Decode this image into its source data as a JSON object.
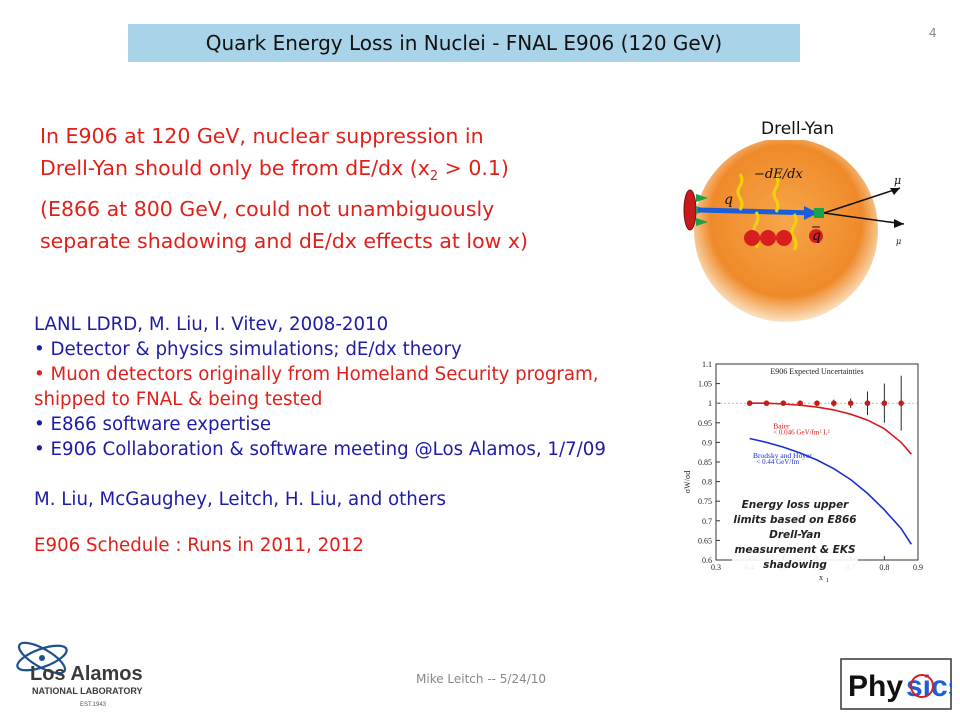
{
  "slide": {
    "title": "Quark Energy Loss in Nuclei - FNAL E906 (120 GeV)",
    "number": "4",
    "footer": "Mike Leitch -- 5/24/10"
  },
  "intro": {
    "line1": "In E906 at 120 GeV, nuclear suppression in",
    "line2_pre": "Drell-Yan should only be from dE/dx (x",
    "line2_sub": "2",
    "line2_post": " > 0.1)",
    "line3": "(E866 at 800 GeV, could not unambiguously",
    "line4": "separate shadowing and dE/dx effects at low x)"
  },
  "body": {
    "heading": "LANL LDRD, M. Liu, I. Vitev, 2008-2010",
    "bullets": [
      "Detector & physics simulations; dE/dx theory",
      "Muon detectors originally from Homeland Security program, shipped to FNAL & being tested",
      "E866 software expertise",
      "E906 Collaboration & software meeting @Los Alamos, 1/7/09"
    ],
    "people": "M. Liu, McGaughey, Leitch, H. Liu, and others",
    "schedule": "E906 Schedule : Runs in 2011, 2012"
  },
  "diagram": {
    "label": "Drell-Yan",
    "quark_label": "q",
    "antiquark_label": "q",
    "energy_loss_label": "−dE/dx",
    "mu_plus": "μ",
    "mu_minus": "μ",
    "colors": {
      "nucleus": "#ef8a2a",
      "beam": "#1b5fd8",
      "gluon": "#f2d10c",
      "nucleon": "#d81e1e"
    }
  },
  "plot": {
    "note": "Energy loss upper limits based on E866 Drell-Yan measurement & EKS shadowing"
  },
  "chart_data": {
    "type": "line",
    "title": "E906 Expected Uncertainties",
    "xlabel": "x",
    "xlabel_sub": "1",
    "ylabel": "σW/σd",
    "xlim": [
      0.3,
      0.9
    ],
    "ylim": [
      0.6,
      1.1
    ],
    "xticks": [
      "0.3",
      "0.4",
      "0.5",
      "0.6",
      "0.7",
      "0.8",
      "0.9"
    ],
    "yticks": [
      "0.6",
      "0.65",
      "0.7",
      "0.75",
      "0.8",
      "0.85",
      "0.9",
      "0.95",
      "1",
      "1.05",
      "1.1"
    ],
    "series": [
      {
        "name": "Baier",
        "note": "< 0.046 GeV/fm² L²",
        "color": "#d71a1a",
        "x": [
          0.4,
          0.45,
          0.5,
          0.55,
          0.6,
          0.65,
          0.7,
          0.75,
          0.8,
          0.85,
          0.88
        ],
        "y": [
          1.0,
          1.0,
          0.998,
          0.995,
          0.99,
          0.983,
          0.972,
          0.957,
          0.935,
          0.9,
          0.87
        ]
      },
      {
        "name": "Brodsky and Hoyer",
        "note": "< 0.44 GeV/fm",
        "color": "#1a2ed6",
        "x": [
          0.4,
          0.45,
          0.5,
          0.55,
          0.6,
          0.65,
          0.7,
          0.75,
          0.8,
          0.85,
          0.88
        ],
        "y": [
          0.91,
          0.9,
          0.888,
          0.873,
          0.855,
          0.833,
          0.805,
          0.77,
          0.728,
          0.68,
          0.64
        ]
      }
    ],
    "points": {
      "color": "#c81a1a",
      "x": [
        0.4,
        0.45,
        0.5,
        0.55,
        0.6,
        0.65,
        0.7,
        0.75,
        0.8,
        0.85
      ],
      "y": [
        1.0,
        1.0,
        1.0,
        1.0,
        1.0,
        1.0,
        1.0,
        1.0,
        1.0,
        1.0
      ],
      "err": [
        0.003,
        0.004,
        0.005,
        0.006,
        0.007,
        0.009,
        0.012,
        0.03,
        0.05,
        0.07
      ]
    }
  }
}
